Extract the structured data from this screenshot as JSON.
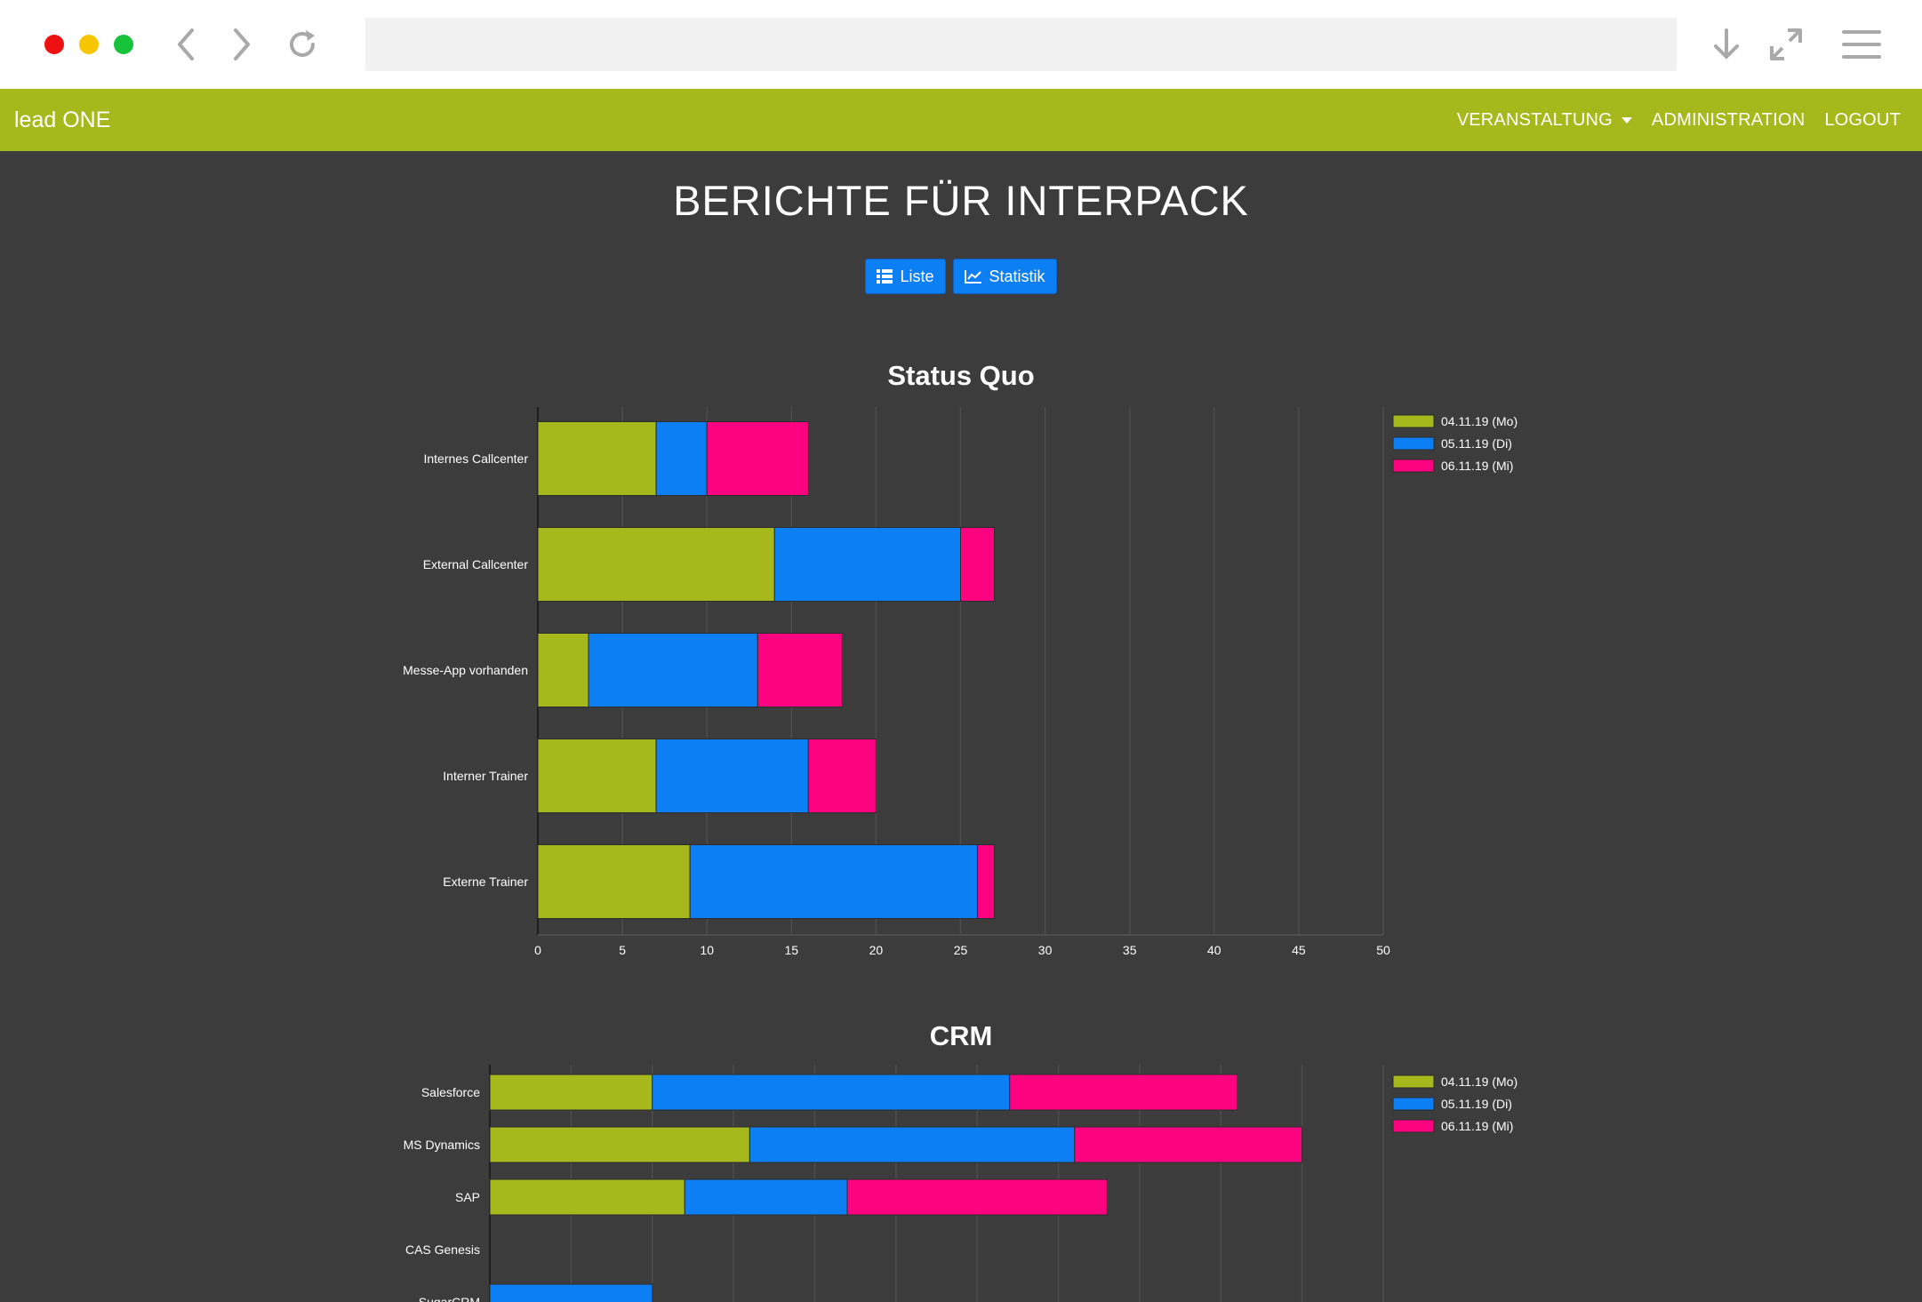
{
  "app": {
    "brand": "lead ONE",
    "nav": {
      "event_label": "VERANSTALTUNG",
      "admin_label": "ADMINISTRATION",
      "logout_label": "LOGOUT"
    }
  },
  "page": {
    "title": "BERICHTE FÜR INTERPACK",
    "buttons": {
      "list_label": "Liste",
      "stats_label": "Statistik"
    }
  },
  "colors": {
    "series1": "#a6b81c",
    "series2": "#0d7ff4",
    "series3": "#fd037f",
    "navbar": "#a6b81c",
    "background": "#3c3c3c"
  },
  "chart_data": [
    {
      "type": "bar",
      "orientation": "horizontal",
      "stacked": true,
      "title": "Status Quo",
      "categories": [
        "Internes Callcenter",
        "External Callcenter",
        "Messe-App vorhanden",
        "Interner Trainer",
        "Externe Trainer"
      ],
      "series": [
        {
          "name": "04.11.19 (Mo)",
          "values": [
            7,
            14,
            3,
            7,
            9
          ]
        },
        {
          "name": "05.11.19 (Di)",
          "values": [
            3,
            11,
            10,
            9,
            17
          ]
        },
        {
          "name": "06.11.19 (Mi)",
          "values": [
            6,
            2,
            5,
            4,
            1
          ]
        }
      ],
      "xlim": [
        0,
        50
      ],
      "xticks": [
        0,
        5,
        10,
        15,
        20,
        25,
        30,
        35,
        40,
        45,
        50
      ],
      "legend": "top-right",
      "grid": true
    },
    {
      "type": "bar",
      "orientation": "horizontal",
      "stacked": true,
      "title": "CRM",
      "categories": [
        "Salesforce",
        "MS Dynamics",
        "SAP",
        "CAS Genesis",
        "SugarCRM"
      ],
      "series": [
        {
          "name": "04.11.19 (Mo)",
          "values": [
            5,
            8,
            6,
            0,
            0
          ]
        },
        {
          "name": "05.11.19 (Di)",
          "values": [
            11,
            10,
            5,
            0,
            5
          ]
        },
        {
          "name": "06.11.19 (Mi)",
          "values": [
            7,
            7,
            8,
            0,
            0
          ]
        }
      ],
      "legend": "top-right",
      "grid": true
    }
  ]
}
